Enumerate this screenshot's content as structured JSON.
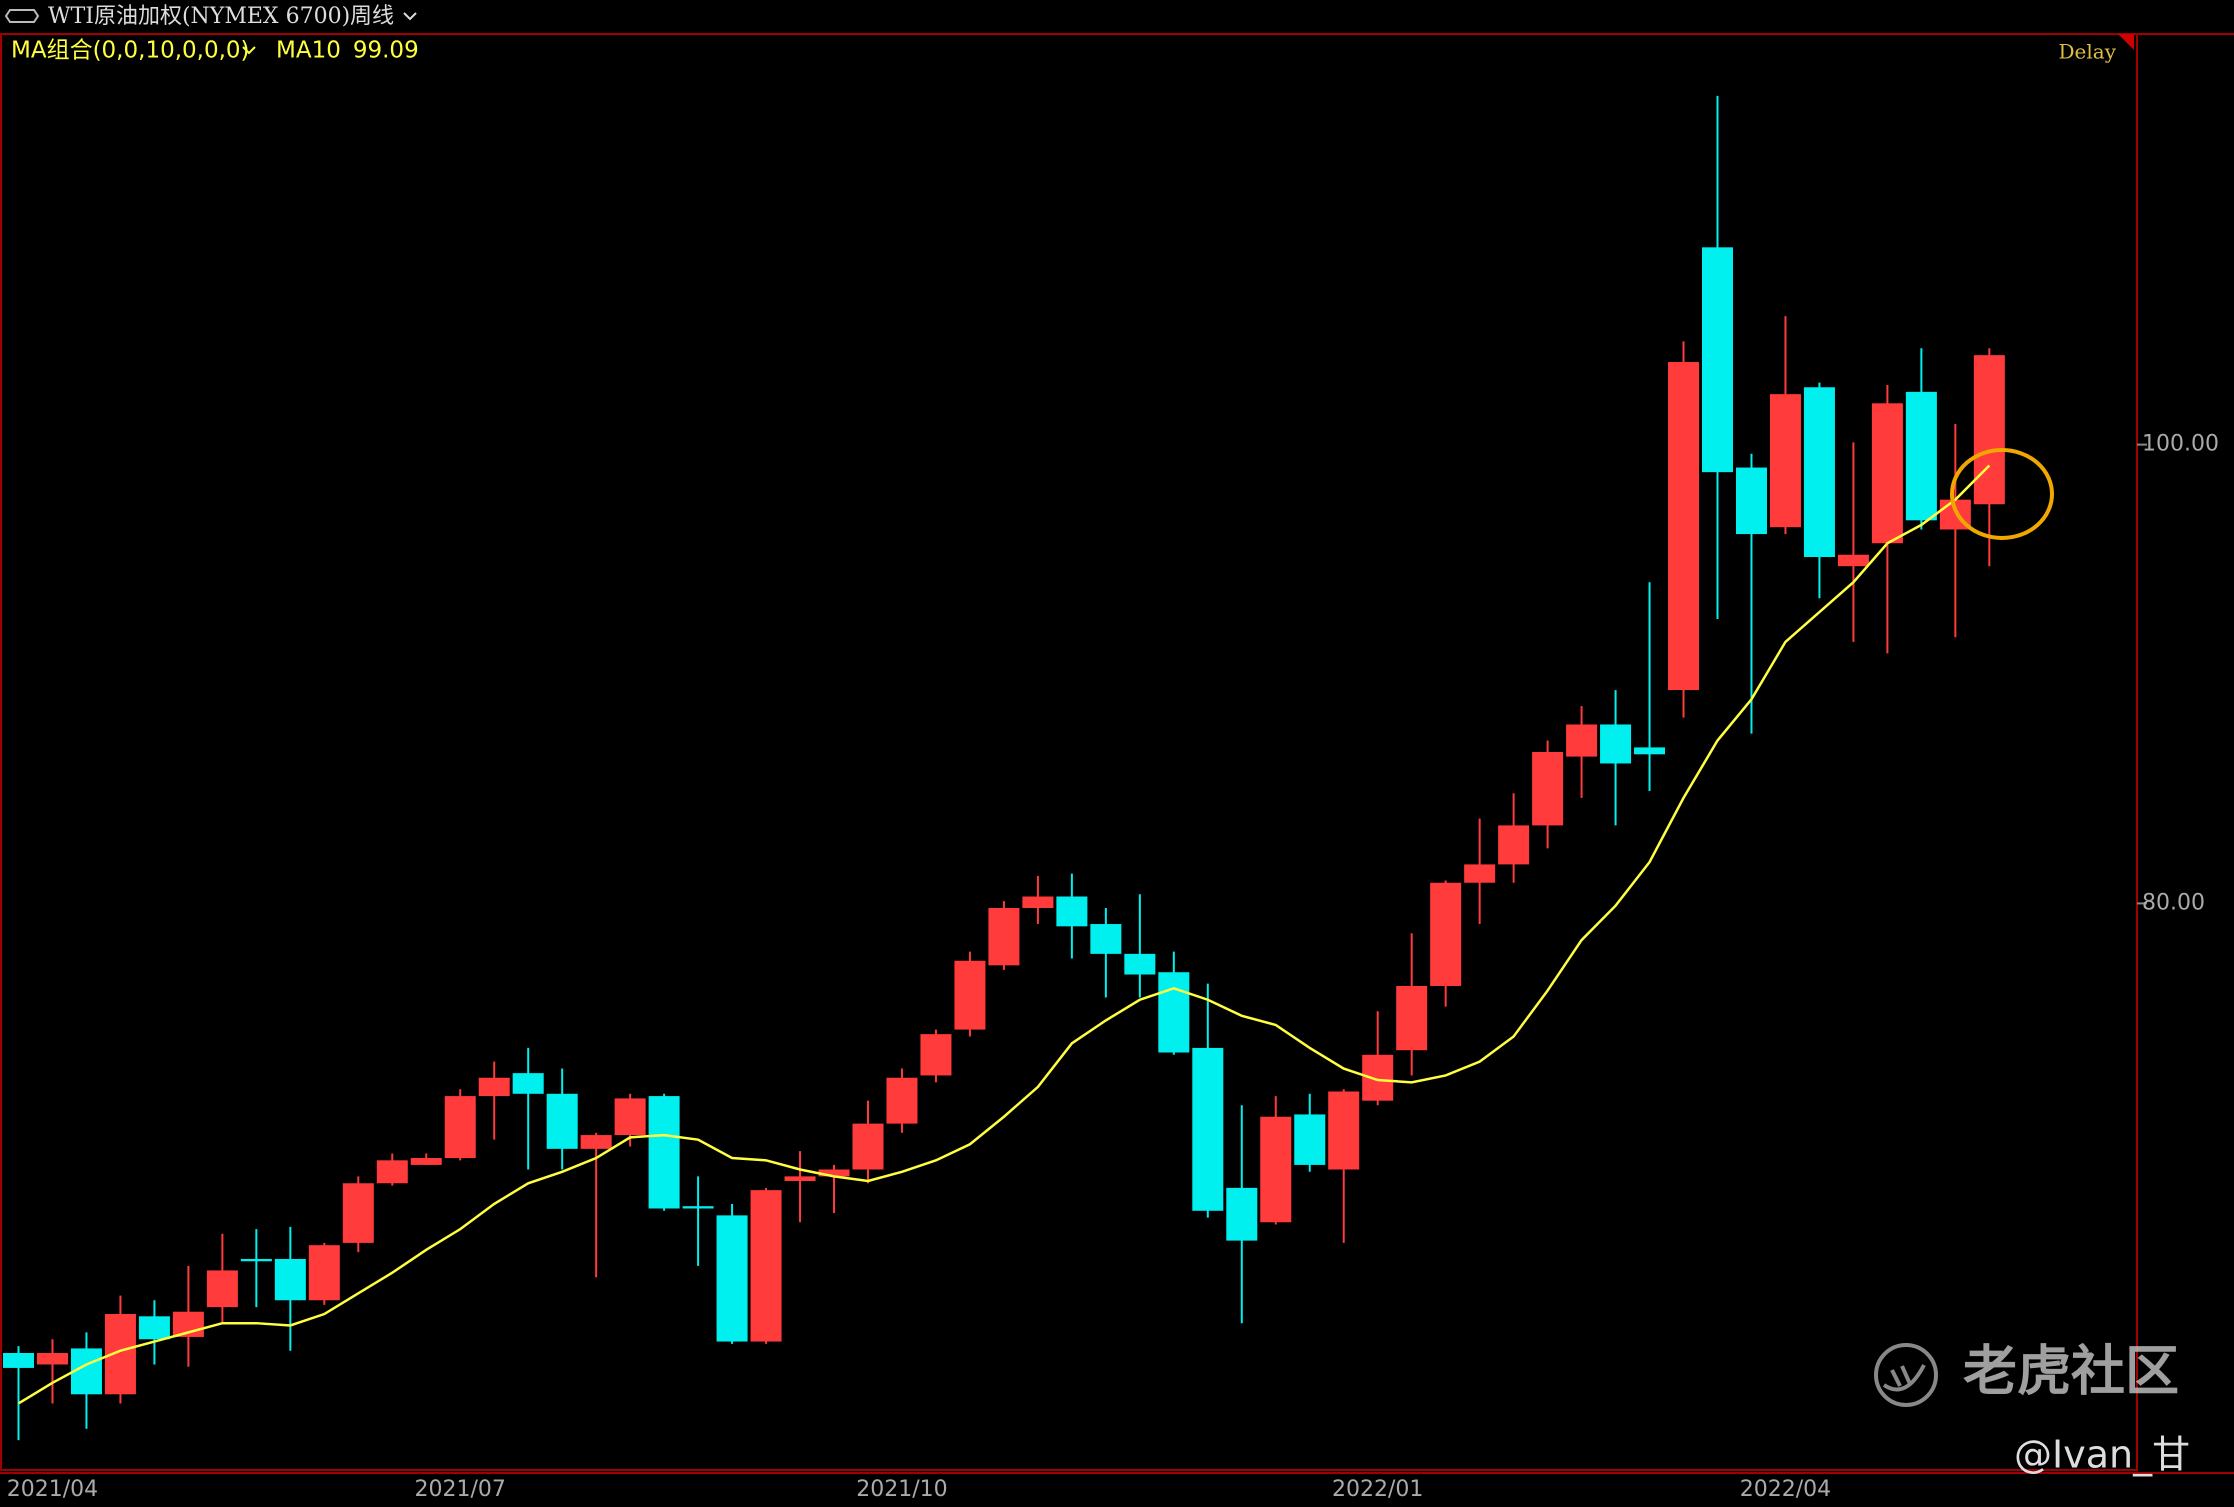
{
  "header": {
    "title": "WTI原油加权(NYMEX 6700)",
    "period": "周线",
    "indicator": "MA组合(0,0,10,0,0,0)",
    "delay": "Delay"
  },
  "watermark": {
    "brand": "老虎社区",
    "user": "@Ivan_甘"
  },
  "chart_data": {
    "type": "candlestick",
    "categories": [
      null,
      "2021/04",
      null,
      null,
      null,
      null,
      null,
      null,
      null,
      null,
      null,
      null,
      null,
      "2021/07",
      null,
      null,
      null,
      null,
      null,
      null,
      null,
      null,
      null,
      null,
      null,
      null,
      "2021/10",
      null,
      null,
      null,
      null,
      null,
      null,
      null,
      null,
      null,
      null,
      null,
      null,
      null,
      "2022/01",
      null,
      null,
      null,
      null,
      null,
      null,
      null,
      null,
      null,
      null,
      null,
      "2022/04",
      null,
      null,
      null,
      null,
      null,
      null
    ],
    "up_color": "#ff3b3b",
    "down_color": "#00f0f0",
    "series": [
      {
        "type": "candlestick",
        "open": [
          60.4,
          59.9,
          60.6,
          58.6,
          62.0,
          61.1,
          62.4,
          64.5,
          64.5,
          62.7,
          65.2,
          67.8,
          68.6,
          68.9,
          71.6,
          72.6,
          71.7,
          69.3,
          69.9,
          71.6,
          66.8,
          66.4,
          60.9,
          67.9,
          68.1,
          68.4,
          70.4,
          72.5,
          74.5,
          77.3,
          79.8,
          80.3,
          79.1,
          77.8,
          77.0,
          73.7,
          67.6,
          66.1,
          70.8,
          68.4,
          71.4,
          73.6,
          76.4,
          80.9,
          81.7,
          83.4,
          86.4,
          87.8,
          86.8,
          89.3,
          108.6,
          99.0,
          96.4,
          102.5,
          94.7,
          95.7,
          102.3,
          96.3,
          97.4
        ],
        "high": [
          60.7,
          61.0,
          61.3,
          62.9,
          62.7,
          64.2,
          65.6,
          65.8,
          65.9,
          65.2,
          68.1,
          69.1,
          69.1,
          71.9,
          73.1,
          73.7,
          72.8,
          70.0,
          71.7,
          71.7,
          68.1,
          66.9,
          67.6,
          69.2,
          68.6,
          71.4,
          72.8,
          74.5,
          77.9,
          80.1,
          81.2,
          81.3,
          79.8,
          80.4,
          77.9,
          76.5,
          71.2,
          71.6,
          71.7,
          71.9,
          75.3,
          78.7,
          81.0,
          83.7,
          84.8,
          87.1,
          88.6,
          89.3,
          94.0,
          104.5,
          115.2,
          99.6,
          105.6,
          102.7,
          100.1,
          102.6,
          104.2,
          100.9,
          104.2
        ],
        "low": [
          56.6,
          58.2,
          57.1,
          58.2,
          59.9,
          59.8,
          61.7,
          62.4,
          60.5,
          62.5,
          64.8,
          67.7,
          68.6,
          68.8,
          69.7,
          68.4,
          68.4,
          63.7,
          69.4,
          66.6,
          64.2,
          60.8,
          60.8,
          66.1,
          66.5,
          67.8,
          70.0,
          72.2,
          74.2,
          77.1,
          79.1,
          77.6,
          75.9,
          75.9,
          73.4,
          66.3,
          61.7,
          66.0,
          68.3,
          65.2,
          71.2,
          72.5,
          75.5,
          79.1,
          80.9,
          82.4,
          84.6,
          83.4,
          84.9,
          88.1,
          92.4,
          87.4,
          96.1,
          93.3,
          91.4,
          90.9,
          96.3,
          91.6,
          94.7
        ],
        "close": [
          59.75,
          60.4,
          58.6,
          62.1,
          61.0,
          62.2,
          64.0,
          64.4,
          62.7,
          65.1,
          67.8,
          68.8,
          68.9,
          71.6,
          72.4,
          71.7,
          69.3,
          69.9,
          71.5,
          66.7,
          66.7,
          60.9,
          67.5,
          68.1,
          68.4,
          70.4,
          72.4,
          74.3,
          77.5,
          79.8,
          80.3,
          79.0,
          77.8,
          76.9,
          73.5,
          66.6,
          65.3,
          70.7,
          68.6,
          71.8,
          73.4,
          76.4,
          80.9,
          81.7,
          83.4,
          86.6,
          87.8,
          86.1,
          86.5,
          103.6,
          98.8,
          96.1,
          102.2,
          95.1,
          95.2,
          101.8,
          96.7,
          97.6,
          103.9
        ]
      },
      {
        "type": "line",
        "name": "MA10",
        "color": "#ffff40",
        "values": [
          58.2,
          59.1,
          59.9,
          60.5,
          60.9,
          61.3,
          61.7,
          61.7,
          61.6,
          62.1,
          63.0,
          63.9,
          64.9,
          65.8,
          66.9,
          67.8,
          68.3,
          68.9,
          69.8,
          69.9,
          69.7,
          68.9,
          68.8,
          68.4,
          68.1,
          67.9,
          68.3,
          68.8,
          69.5,
          70.7,
          72.0,
          73.9,
          74.9,
          75.8,
          76.3,
          75.8,
          75.1,
          74.7,
          73.7,
          72.8,
          72.3,
          72.2,
          72.5,
          73.1,
          74.2,
          76.2,
          78.4,
          79.9,
          81.8,
          84.6,
          87.1,
          88.9,
          91.4,
          92.7,
          94.0,
          95.7,
          96.5,
          97.6,
          99.09
        ]
      }
    ],
    "ylim": [
      55.3,
      117.9
    ],
    "yticks": [
      {
        "value": 80,
        "label": "80.00"
      },
      {
        "value": 100,
        "label": "100.00"
      }
    ]
  }
}
